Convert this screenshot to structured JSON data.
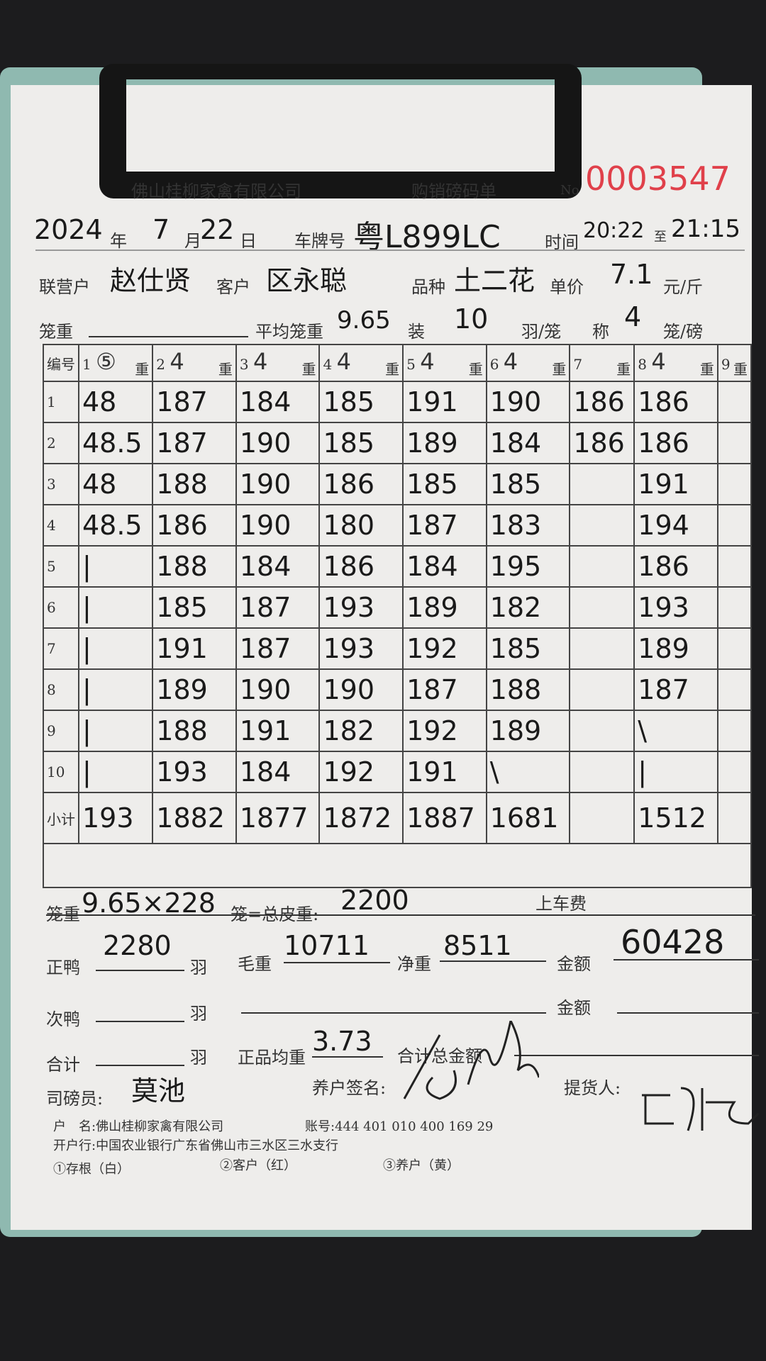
{
  "header": {
    "company": "佛山桂柳家禽有限公司",
    "form_title": "购销磅码单",
    "no_label": "No",
    "serial": "0003547"
  },
  "date": {
    "year": "2024",
    "year_label": "年",
    "month": "7",
    "month_label": "月",
    "day": "22",
    "day_label": "日"
  },
  "plate": {
    "label": "车牌号",
    "value": "粤L899LC"
  },
  "time": {
    "label": "时间",
    "start": "20:22",
    "sep": "至",
    "end": "21:15"
  },
  "row2": {
    "partner_label": "联营户",
    "partner": "赵仕贤",
    "customer_label": "客户",
    "customer": "区永聪",
    "variety_label": "品种",
    "variety": "土二花",
    "price_label": "单价",
    "price": "7.1",
    "price_unit": "元/斤"
  },
  "row3": {
    "cage_label": "笼重",
    "avg_label": "平均笼重",
    "avg": "9.65",
    "pack_label": "装",
    "pack": "10",
    "pack_unit": "羽/笼",
    "weigh_label": "称",
    "weigh": "4",
    "weigh_unit": "笼/磅"
  },
  "table": {
    "id_label": "编号",
    "weight_label": "重",
    "subtotal_label": "小计",
    "headers": [
      "⑤",
      "4",
      "4",
      "4",
      "4",
      "4",
      "",
      "4",
      ""
    ],
    "rows": [
      [
        "48",
        "187",
        "184",
        "185",
        "191",
        "190",
        "186",
        "186",
        ""
      ],
      [
        "48.5",
        "187",
        "190",
        "185",
        "189",
        "184",
        "186",
        "186",
        ""
      ],
      [
        "48",
        "188",
        "190",
        "186",
        "185",
        "185",
        "",
        "191",
        ""
      ],
      [
        "48.5",
        "186",
        "190",
        "180",
        "187",
        "183",
        "",
        "194",
        ""
      ],
      [
        "|",
        "188",
        "184",
        "186",
        "184",
        "195",
        "",
        "186",
        ""
      ],
      [
        "|",
        "185",
        "187",
        "193",
        "189",
        "182",
        "",
        "193",
        ""
      ],
      [
        "|",
        "191",
        "187",
        "193",
        "192",
        "185",
        "",
        "189",
        ""
      ],
      [
        "|",
        "189",
        "190",
        "190",
        "187",
        "188",
        "",
        "187",
        ""
      ],
      [
        "|",
        "188",
        "191",
        "182",
        "192",
        "189",
        "",
        "\\",
        ""
      ],
      [
        "|",
        "193",
        "184",
        "192",
        "191",
        "\\",
        "",
        "|",
        ""
      ]
    ],
    "subtotals": [
      "193",
      "1882",
      "1877",
      "1872",
      "1887",
      "1681",
      "",
      "1512",
      ""
    ]
  },
  "summary": {
    "cage_label": "笼重",
    "cage_calc": "9.65×228",
    "cage_unit": "笼=总皮重:",
    "tare": "2200",
    "loading_fee_label": "上车费",
    "main_duck_label": "正鸭",
    "main_duck": "2280",
    "yu": "羽",
    "gross_label": "毛重",
    "gross": "10711",
    "net_label": "净重",
    "net": "8511",
    "amount_label": "金额",
    "amount": "60428",
    "second_duck_label": "次鸭",
    "total_label": "合计",
    "avg_weight_label": "正品均重",
    "avg_weight": "3.73",
    "grand_total_label": "合计总金额",
    "weigher_label": "司磅员:",
    "weigher": "莫池",
    "farmer_sign_label": "养户签名:",
    "picker_label": "提货人:"
  },
  "footer": {
    "account_name": "户　名:佛山桂柳家禽有限公司",
    "account_no": "账号:444 401 010 400 169 29",
    "bank": "开户行:中国农业银行广东省佛山市三水区三水支行",
    "copy1": "①存根（白）",
    "copy2": "②客户（红）",
    "copy3": "③养户（黄）"
  }
}
